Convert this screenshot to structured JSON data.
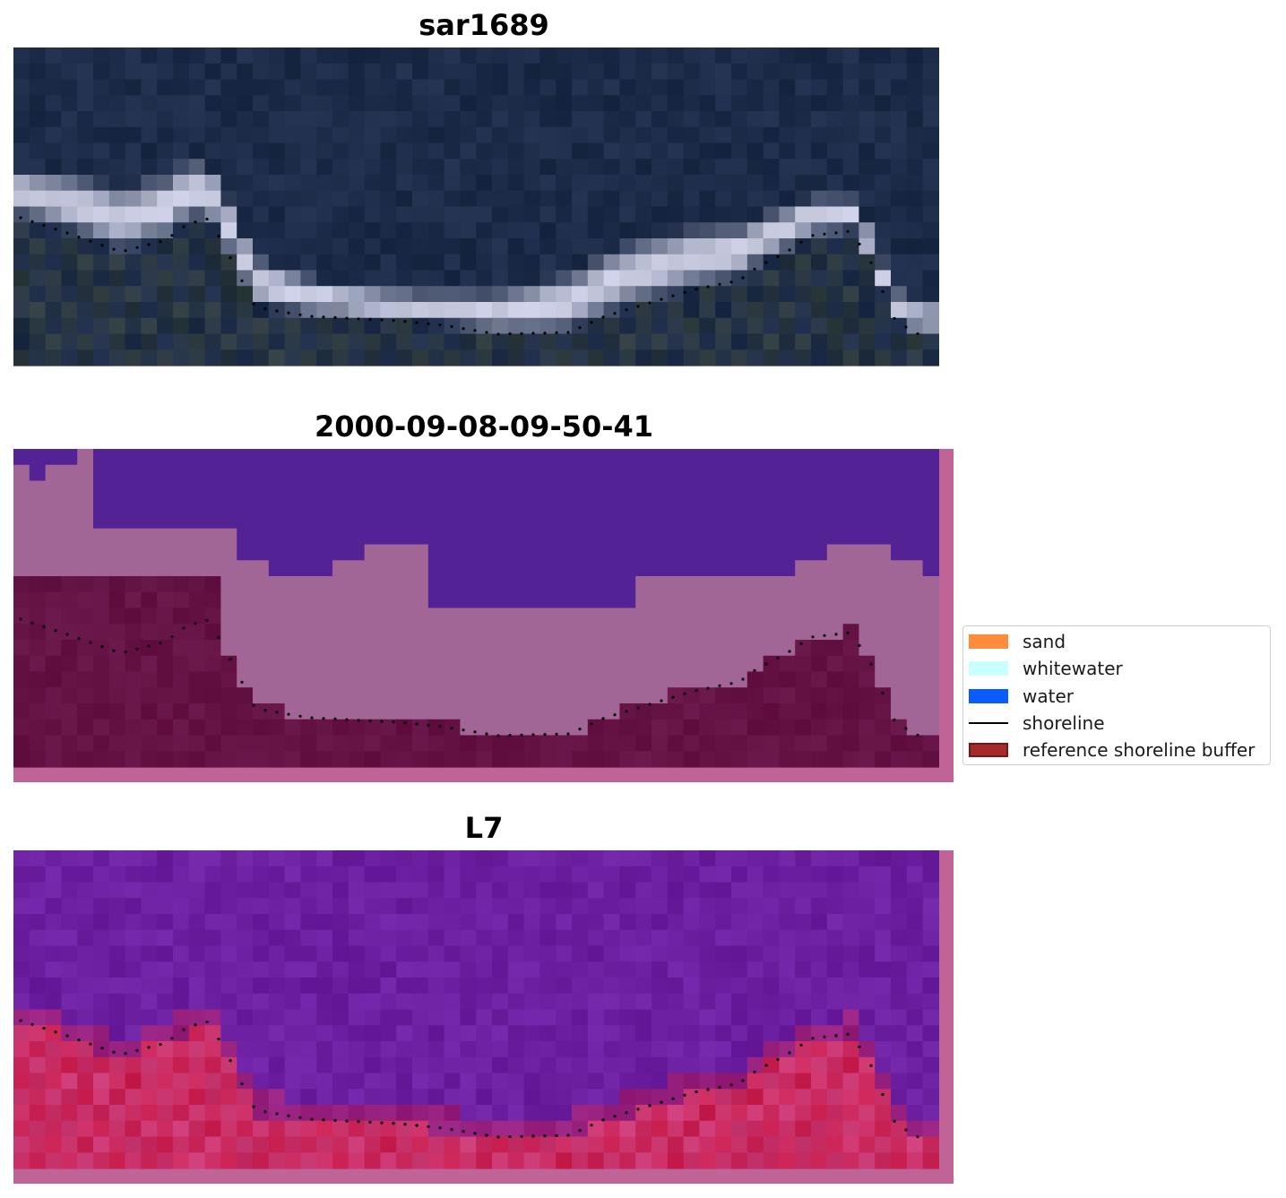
{
  "panels": [
    {
      "title": "sar1689"
    },
    {
      "title": "2000-09-08-09-50-41"
    },
    {
      "title": "L7"
    }
  ],
  "legend": {
    "items": [
      {
        "label": "sand",
        "kind": "patch",
        "color": "#ff8c3a"
      },
      {
        "label": "whitewater",
        "kind": "patch",
        "color": "#c8ffff"
      },
      {
        "label": "water",
        "kind": "patch",
        "color": "#0a5cff"
      },
      {
        "label": "shoreline",
        "kind": "line",
        "color": "#000000"
      },
      {
        "label": "reference shoreline buffer",
        "kind": "patch",
        "color": "#a52a2a",
        "edge": "#7a1515"
      }
    ]
  },
  "colors": {
    "rgb_water": "#1c2b48",
    "rgb_whitewater": "#c8cbe0",
    "rgb_vegetation": "#3b4636",
    "class_water": "#532295",
    "class_whitewater": "#a26696",
    "class_sand": "#651245",
    "class_buffer": "#c06396",
    "index_water": "#6c1fa0",
    "index_land": "#c92052"
  }
}
